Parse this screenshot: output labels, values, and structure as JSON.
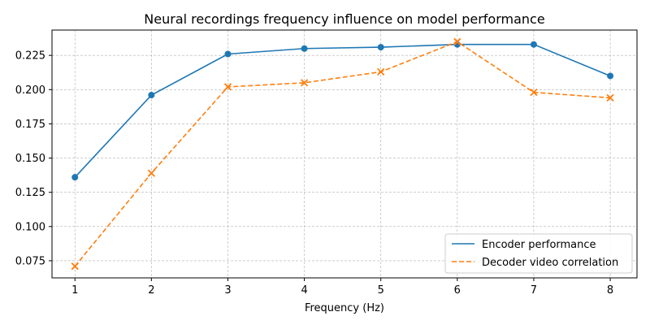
{
  "chart_data": {
    "type": "line",
    "title": "Neural recordings frequency influence on model performance",
    "xlabel": "Frequency (Hz)",
    "ylabel": "",
    "x": [
      1,
      2,
      3,
      4,
      5,
      6,
      7,
      8
    ],
    "xlim": [
      0.7,
      8.35
    ],
    "ylim": [
      0.0625,
      0.2435
    ],
    "xticks": [
      "1",
      "2",
      "3",
      "4",
      "5",
      "6",
      "7",
      "8"
    ],
    "yticks": [
      "0.075",
      "0.100",
      "0.125",
      "0.150",
      "0.175",
      "0.200",
      "0.225"
    ],
    "grid": true,
    "legend_position": "lower-right",
    "series": [
      {
        "name": "Encoder performance",
        "values": [
          0.136,
          0.196,
          0.226,
          0.23,
          0.231,
          0.233,
          0.233,
          0.21
        ],
        "color": "#1f77b4",
        "linestyle": "solid",
        "marker": "circle"
      },
      {
        "name": "Decoder video correlation",
        "values": [
          0.071,
          0.139,
          0.202,
          0.205,
          0.213,
          0.235,
          0.198,
          0.194
        ],
        "color": "#ff7f0e",
        "linestyle": "dashed",
        "marker": "x"
      }
    ]
  }
}
